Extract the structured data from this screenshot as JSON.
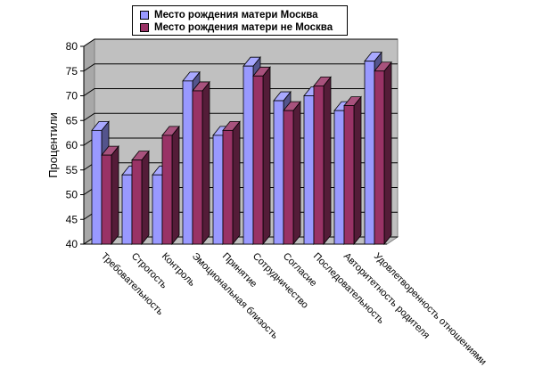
{
  "chart_data": {
    "type": "bar",
    "title": "",
    "xlabel": "",
    "ylabel": "Процентили",
    "ylim": [
      40,
      80
    ],
    "yticks": [
      40,
      45,
      50,
      55,
      60,
      65,
      70,
      75,
      80
    ],
    "grid": true,
    "legend_position": "top",
    "categories": [
      "Требовательность",
      "Строгость",
      "Контроль",
      "Эмоциональная близость",
      "Принятие",
      "Сотрудничество",
      "Согласие",
      "Последовательность",
      "Авторитетность родителя",
      "Удовлетворенность отношениями"
    ],
    "series": [
      {
        "name": "Место рождения матери Москва",
        "color": "#9999ff",
        "values": [
          63,
          54,
          54,
          73,
          62,
          76,
          69,
          70,
          67,
          77
        ]
      },
      {
        "name": "Место рождения матери не Москва",
        "color": "#993366",
        "values": [
          58,
          57,
          62,
          71,
          63,
          74,
          67,
          72,
          68,
          75
        ]
      }
    ]
  }
}
